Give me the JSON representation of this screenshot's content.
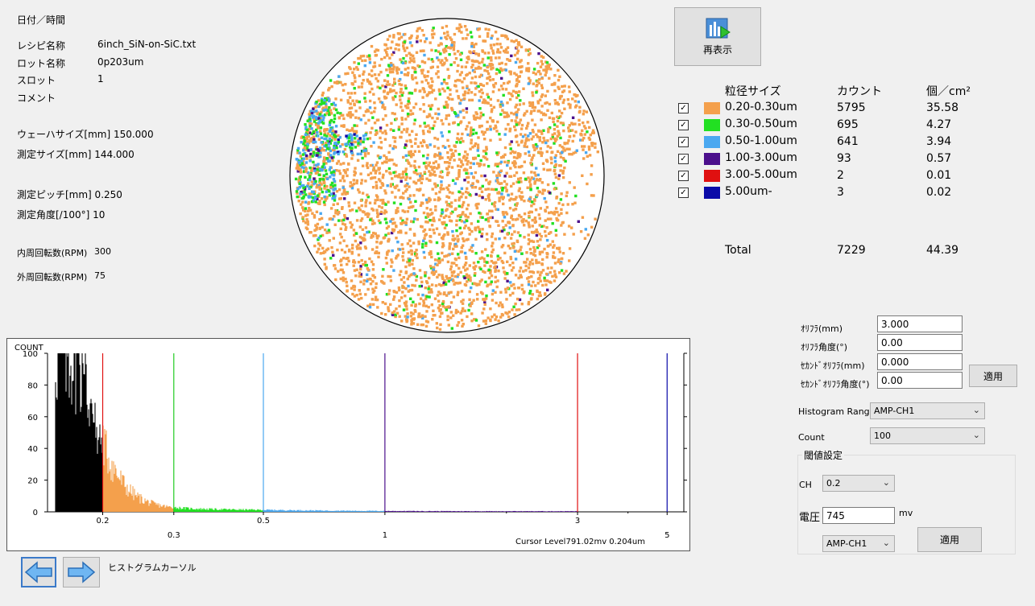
{
  "info": {
    "datetime_label": "日付／時間",
    "recipe_label": "レシピ名称",
    "recipe_value": "6inch_SiN-on-SiC.txt",
    "lot_label": "ロット名称",
    "lot_value": "0p203um",
    "slot_label": "スロット",
    "slot_value": "1",
    "comment_label": "コメント",
    "wafer_size": "ウェーハサイズ[mm] 150.000",
    "measure_size": "測定サイズ[mm] 144.000",
    "pitch": "測定ピッチ[mm] 0.250",
    "angle": "測定角度[/100°] 10",
    "inner_rpm_label": "内周回転数(RPM)",
    "inner_rpm_value": "300",
    "outer_rpm_label": "外周回転数(RPM)",
    "outer_rpm_value": "75"
  },
  "redisplay_label": "再表示",
  "legend": {
    "headers": {
      "size": "粒径サイズ",
      "count": "カウント",
      "density": "個／cm²"
    },
    "rows": [
      {
        "name": "0.20-0.30um",
        "count": "5795",
        "density": "35.58",
        "color": "#f4a04c",
        "checked": "✓"
      },
      {
        "name": "0.30-0.50um",
        "count": "695",
        "density": "4.27",
        "color": "#22e022",
        "checked": "✓"
      },
      {
        "name": "0.50-1.00um",
        "count": "641",
        "density": "3.94",
        "color": "#4aa8f0",
        "checked": "✓"
      },
      {
        "name": "1.00-3.00um",
        "count": "93",
        "density": "0.57",
        "color": "#4b0f8c",
        "checked": "✓"
      },
      {
        "name": "3.00-5.00um",
        "count": "2",
        "density": "0.01",
        "color": "#e01010",
        "checked": "✓"
      },
      {
        "name": "5.00um-",
        "count": "3",
        "density": "0.02",
        "color": "#0a0aa8",
        "checked": "✓"
      }
    ],
    "total_label": "Total",
    "total_count": "7229",
    "total_density": "44.39"
  },
  "settings": {
    "orifla_label": "ｵﾘﾌﾗ(mm)",
    "orifla_value": "3.000",
    "orifla_angle_label": "ｵﾘﾌﾗ角度(°)",
    "orifla_angle_value": "0.00",
    "second_orifla_label": "ｾｶﾝﾄﾞｵﾘﾌﾗ(mm)",
    "second_orifla_value": "0.000",
    "second_orifla_angle_label": "ｾｶﾝﾄﾞｵﾘﾌﾗ角度(°)",
    "second_orifla_angle_value": "0.00",
    "apply_label": "適用",
    "histogram_range_label": "Histogram Range",
    "histogram_range_value": "AMP-CH1",
    "count_label": "Count",
    "count_value": "100",
    "threshold_group_label": "閾値設定",
    "ch_label": "CH",
    "ch_value": "0.2",
    "voltage_label": "電圧",
    "voltage_value": "745",
    "voltage_unit": "mv",
    "amp_value": "AMP-CH1",
    "threshold_apply_label": "適用"
  },
  "histogram_cursor_label": "ヒストグラムカーソル",
  "chart_data": {
    "type": "bar",
    "ylabel": "COUNT",
    "yticks": [
      "100",
      "80",
      "60",
      "40",
      "20",
      "0"
    ],
    "ylim": [
      0,
      100
    ],
    "xscale": "log",
    "xticks_major": [
      "0.2",
      "0.5",
      "3"
    ],
    "xticks_minor": [
      "0.3",
      "1",
      "5"
    ],
    "thresholds": [
      {
        "x": 0.2,
        "color": "#e01010"
      },
      {
        "x": 0.3,
        "color": "#22cc22"
      },
      {
        "x": 0.5,
        "color": "#4aa8f0"
      },
      {
        "x": 1.0,
        "color": "#4b0f8c"
      },
      {
        "x": 3.0,
        "color": "#e01010"
      },
      {
        "x": 5.0,
        "color": "#0a0aa8"
      }
    ],
    "cursor_text": "Cursor Level791.02mv 0.204um"
  }
}
